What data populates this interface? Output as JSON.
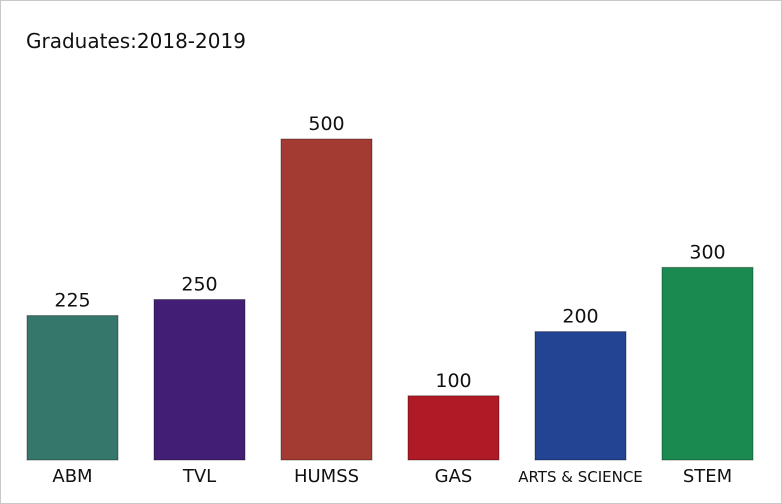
{
  "chart_data": {
    "type": "bar",
    "title": "Graduates:2018-2019",
    "xlabel": "",
    "ylabel": "",
    "categories": [
      "ABM",
      "TVL",
      "HUMSS",
      "GAS",
      "ARTS & SCIENCE",
      "STEM"
    ],
    "values": [
      225,
      250,
      500,
      100,
      200,
      300
    ],
    "value_labels": [
      "225",
      "250",
      "500",
      "100",
      "200",
      "300"
    ],
    "colors": [
      "#35776a",
      "#421f74",
      "#a33b33",
      "#b01a26",
      "#234393",
      "#1b8a50"
    ],
    "ylim": [
      0,
      500
    ],
    "grid": false,
    "legend": "none"
  }
}
